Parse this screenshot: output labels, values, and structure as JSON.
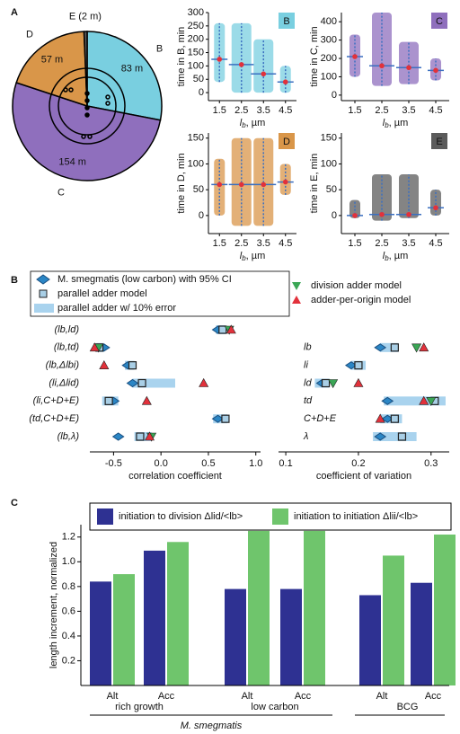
{
  "panels": [
    "A",
    "B",
    "C"
  ],
  "chart_data": [
    {
      "type": "pie",
      "categories": [
        "B",
        "C",
        "D",
        "E (2 m)"
      ],
      "values": [
        83,
        154,
        57,
        2
      ],
      "value_labels": [
        "83 m",
        "154 m",
        "57 m",
        null
      ],
      "colors": [
        "#79cfe0",
        "#8f6fbd",
        "#d99649",
        "#5b5b5b"
      ]
    },
    {
      "type": "strip",
      "label": "B",
      "color": "#79cfe0",
      "ylabel": "time in B, min",
      "xlabel": {
        "var": "l",
        "sub": "b",
        "unit": ", µm"
      },
      "x": [
        1.5,
        2.5,
        3.5,
        4.5
      ],
      "xlim": [
        1,
        5
      ],
      "xticks": [
        1.5,
        2.5,
        3.5,
        4.5
      ],
      "ylim": [
        -30,
        300
      ],
      "yticks": [
        0,
        50,
        100,
        150,
        200,
        250,
        300
      ],
      "values": [
        125,
        105,
        70,
        40
      ],
      "ranges": [
        [
          40,
          260
        ],
        [
          0,
          260
        ],
        [
          0,
          200
        ],
        [
          0,
          100
        ]
      ]
    },
    {
      "type": "strip",
      "label": "C",
      "color": "#8f6fbd",
      "ylabel": "time in C, min",
      "xlabel": {
        "var": "l",
        "sub": "b",
        "unit": ", µm"
      },
      "x": [
        1.5,
        2.5,
        3.5,
        4.5
      ],
      "xlim": [
        1,
        5
      ],
      "xticks": [
        1.5,
        2.5,
        3.5,
        4.5
      ],
      "ylim": [
        -30,
        450
      ],
      "yticks": [
        0,
        100,
        200,
        300,
        400
      ],
      "values": [
        210,
        160,
        150,
        135
      ],
      "ranges": [
        [
          100,
          330
        ],
        [
          50,
          450
        ],
        [
          60,
          290
        ],
        [
          80,
          200
        ]
      ]
    },
    {
      "type": "strip",
      "label": "D",
      "color": "#d99649",
      "ylabel": "time in D, min",
      "xlabel": {
        "var": "l",
        "sub": "b",
        "unit": ", µm"
      },
      "x": [
        1.5,
        2.5,
        3.5,
        4.5
      ],
      "xlim": [
        1,
        5
      ],
      "xticks": [
        1.5,
        2.5,
        3.5,
        4.5
      ],
      "ylim": [
        -35,
        160
      ],
      "yticks": [
        0,
        50,
        100,
        150
      ],
      "values": [
        60,
        60,
        60,
        65
      ],
      "ranges": [
        [
          0,
          110
        ],
        [
          -20,
          150
        ],
        [
          -20,
          150
        ],
        [
          40,
          100
        ]
      ]
    },
    {
      "type": "strip",
      "label": "E",
      "color": "#5b5b5b",
      "ylabel": "time in E, min",
      "xlabel": {
        "var": "l",
        "sub": "b",
        "unit": ", µm"
      },
      "x": [
        1.5,
        2.5,
        3.5,
        4.5
      ],
      "xlim": [
        1,
        5
      ],
      "xticks": [
        1.5,
        2.5,
        3.5,
        4.5
      ],
      "ylim": [
        -35,
        160
      ],
      "yticks": [
        0,
        50,
        100,
        150
      ],
      "values": [
        0,
        2,
        2,
        15
      ],
      "ranges": [
        [
          -5,
          30
        ],
        [
          -10,
          80
        ],
        [
          -5,
          80
        ],
        [
          0,
          50
        ]
      ]
    },
    {
      "type": "dot",
      "xlabel": "correlation coefficient",
      "ylabels": [
        "(lb,ld)",
        "(lb,td)",
        "(lb,Δlbi)",
        "(li,Δlid)",
        "(li,C+D+E)",
        "(td,C+D+E)",
        "(lb,λ)"
      ],
      "xlim": [
        -0.75,
        1.05
      ],
      "xticks": [
        -0.5,
        {
          "value": 0,
          "label": "0.0"
        },
        0.5,
        {
          "value": 1,
          "label": "1.0"
        }
      ],
      "series": [
        {
          "name": "parallel adder w/ 10% error",
          "color": "#a9d3ee",
          "marker": "range",
          "values": [
            [
              0.58,
              0.68
            ],
            [
              -0.68,
              -0.6
            ],
            [
              -0.38,
              -0.28
            ],
            [
              -0.3,
              0.15
            ],
            [
              -0.62,
              -0.45
            ],
            [
              0.55,
              0.7
            ],
            [
              -0.28,
              -0.1
            ]
          ]
        },
        {
          "name": "M. smegmatis (low carbon) with 95% CI",
          "color": "#2b86c5",
          "marker": "diamond",
          "values": [
            0.6,
            -0.6,
            -0.35,
            -0.3,
            -0.5,
            0.6,
            -0.45
          ]
        },
        {
          "name": "parallel adder model",
          "color": "#a9cfe6",
          "marker": "square",
          "values": [
            0.65,
            -0.65,
            -0.3,
            -0.2,
            -0.55,
            0.68,
            -0.22
          ]
        },
        {
          "name": "division adder model",
          "color": "#3aa655",
          "marker": "tri-down",
          "values": [
            0.72,
            -0.66,
            null,
            null,
            null,
            null,
            -0.1
          ]
        },
        {
          "name": "adder-per-origin model",
          "color": "#e2313b",
          "marker": "tri-up",
          "values": [
            0.74,
            -0.7,
            -0.6,
            0.45,
            -0.15,
            null,
            -0.12
          ]
        }
      ]
    },
    {
      "type": "dot",
      "xlabel": "coefficient of variation",
      "ylabels": [
        "lb",
        "li",
        "ld",
        "td",
        "C+D+E",
        "λ"
      ],
      "xlim": [
        0.09,
        0.325
      ],
      "xticks": [
        0.1,
        0.2,
        0.3
      ],
      "series": [
        {
          "values": [
            [
              0.23,
              0.255
            ],
            [
              0.19,
              0.21
            ],
            [
              0.14,
              0.16
            ],
            [
              0.235,
              0.32
            ],
            [
              0.23,
              0.26
            ],
            [
              0.22,
              0.28
            ]
          ]
        },
        {
          "values": [
            0.23,
            0.19,
            0.15,
            0.24,
            0.24,
            0.23
          ]
        },
        {
          "values": [
            0.25,
            0.2,
            0.155,
            0.305,
            0.25,
            0.26
          ]
        },
        {
          "values": [
            0.28,
            null,
            0.165,
            0.3,
            null,
            null
          ]
        },
        {
          "values": [
            0.29,
            null,
            0.2,
            0.29,
            0.23,
            null
          ]
        }
      ]
    },
    {
      "type": "grouped_bar",
      "categories": [
        "Alt",
        "Acc",
        "Alt",
        "Acc",
        "Alt",
        "Acc"
      ],
      "groups": [
        "rich growth",
        "low carbon",
        "BCG"
      ],
      "supergroup": "M. smegmatis",
      "ylabel": "length increment, normalized",
      "ylim": [
        0,
        1.3
      ],
      "yticks": [
        0.2,
        0.4,
        0.6,
        0.8,
        {
          "value": 1,
          "label": "1.0"
        },
        1.2
      ],
      "series": [
        {
          "name": "initiation to division  Δlid/<lb>",
          "color": "#2e3192",
          "values": [
            0.84,
            1.09,
            0.78,
            0.78,
            0.73,
            0.83
          ]
        },
        {
          "name": "initiation to initiation  Δlii/<lb>",
          "color": "#6fc56c",
          "values": [
            0.9,
            1.16,
            1.25,
            1.25,
            1.05,
            1.22
          ]
        }
      ]
    }
  ]
}
